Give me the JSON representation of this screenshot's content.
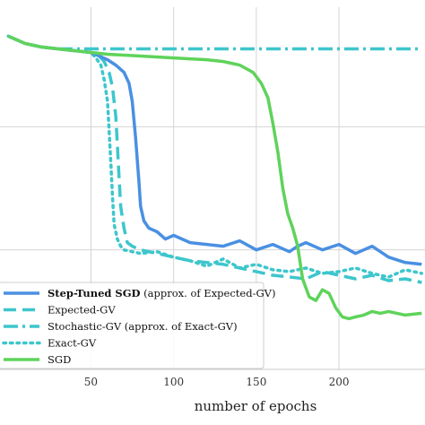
{
  "chart_data": {
    "type": "line",
    "xlabel": "number of epochs",
    "ylabel": "",
    "xlim": [
      -5,
      252
    ],
    "ylim": [
      0,
      1
    ],
    "x_ticks": [
      50,
      100,
      150,
      200
    ],
    "grid": true,
    "legend_placement": "lower-left",
    "series": [
      {
        "name": "Step-Tuned SGD (approx. of Expected-GV)",
        "legend_bold": "Step-Tuned SGD",
        "legend_rest": " (approx. of Expected-GV)",
        "color": "#4a90e2",
        "style": "solid",
        "x": [
          0,
          10,
          20,
          30,
          40,
          50,
          55,
          60,
          65,
          70,
          73,
          75,
          77,
          79,
          80,
          82,
          85,
          90,
          95,
          100,
          110,
          120,
          130,
          140,
          150,
          160,
          170,
          175,
          180,
          190,
          200,
          210,
          220,
          230,
          240,
          250
        ],
        "y": [
          0.92,
          0.9,
          0.89,
          0.885,
          0.88,
          0.875,
          0.865,
          0.855,
          0.84,
          0.82,
          0.79,
          0.74,
          0.64,
          0.52,
          0.45,
          0.41,
          0.39,
          0.38,
          0.36,
          0.37,
          0.35,
          0.345,
          0.34,
          0.355,
          0.33,
          0.345,
          0.325,
          0.34,
          0.35,
          0.33,
          0.345,
          0.32,
          0.34,
          0.31,
          0.295,
          0.29
        ]
      },
      {
        "name": "Expected-GV",
        "color": "#3dc6cc",
        "style": "dashed",
        "x": [
          0,
          10,
          20,
          30,
          40,
          50,
          55,
          58,
          61,
          63,
          65,
          66,
          67,
          68,
          70,
          72,
          75,
          80,
          90,
          100,
          110,
          120,
          130,
          140,
          150,
          160,
          170,
          180,
          190,
          200,
          210,
          220,
          230,
          240,
          250
        ],
        "y": [
          0.92,
          0.9,
          0.89,
          0.885,
          0.88,
          0.875,
          0.865,
          0.85,
          0.82,
          0.78,
          0.7,
          0.62,
          0.53,
          0.45,
          0.39,
          0.35,
          0.34,
          0.33,
          0.32,
          0.31,
          0.3,
          0.295,
          0.29,
          0.28,
          0.27,
          0.26,
          0.255,
          0.25,
          0.27,
          0.26,
          0.25,
          0.26,
          0.245,
          0.25,
          0.24
        ]
      },
      {
        "name": "Stochastic-GV (approx. of Exact-GV)",
        "color": "#3dc6cc",
        "style": "dashdot",
        "x": [
          0,
          10,
          20,
          30,
          40,
          50,
          60,
          80,
          100,
          150,
          200,
          250
        ],
        "y": [
          0.92,
          0.9,
          0.89,
          0.885,
          0.885,
          0.885,
          0.885,
          0.885,
          0.885,
          0.885,
          0.885,
          0.885
        ]
      },
      {
        "name": "Exact-GV",
        "color": "#3dc6cc",
        "style": "dotted",
        "x": [
          0,
          10,
          20,
          30,
          40,
          50,
          53,
          56,
          58,
          60,
          61,
          62,
          63,
          64,
          66,
          68,
          70,
          75,
          80,
          90,
          100,
          110,
          120,
          130,
          140,
          150,
          160,
          170,
          180,
          190,
          200,
          210,
          220,
          230,
          240,
          250
        ],
        "y": [
          0.92,
          0.9,
          0.89,
          0.885,
          0.88,
          0.875,
          0.86,
          0.84,
          0.8,
          0.74,
          0.66,
          0.57,
          0.48,
          0.4,
          0.36,
          0.34,
          0.33,
          0.325,
          0.32,
          0.325,
          0.31,
          0.3,
          0.285,
          0.305,
          0.28,
          0.29,
          0.275,
          0.27,
          0.28,
          0.265,
          0.27,
          0.28,
          0.265,
          0.255,
          0.275,
          0.265
        ]
      },
      {
        "name": "SGD",
        "color": "#5fd35a",
        "style": "solid",
        "x": [
          0,
          10,
          20,
          30,
          40,
          50,
          60,
          80,
          100,
          120,
          130,
          140,
          148,
          153,
          157,
          160,
          163,
          166,
          169,
          172,
          175,
          178,
          182,
          186,
          190,
          194,
          198,
          202,
          206,
          210,
          215,
          220,
          225,
          230,
          240,
          250
        ],
        "y": [
          0.92,
          0.9,
          0.89,
          0.885,
          0.88,
          0.875,
          0.87,
          0.865,
          0.86,
          0.855,
          0.85,
          0.84,
          0.82,
          0.79,
          0.75,
          0.68,
          0.6,
          0.5,
          0.43,
          0.39,
          0.34,
          0.25,
          0.2,
          0.19,
          0.22,
          0.21,
          0.17,
          0.145,
          0.14,
          0.145,
          0.15,
          0.16,
          0.155,
          0.16,
          0.15,
          0.155
        ]
      }
    ]
  }
}
